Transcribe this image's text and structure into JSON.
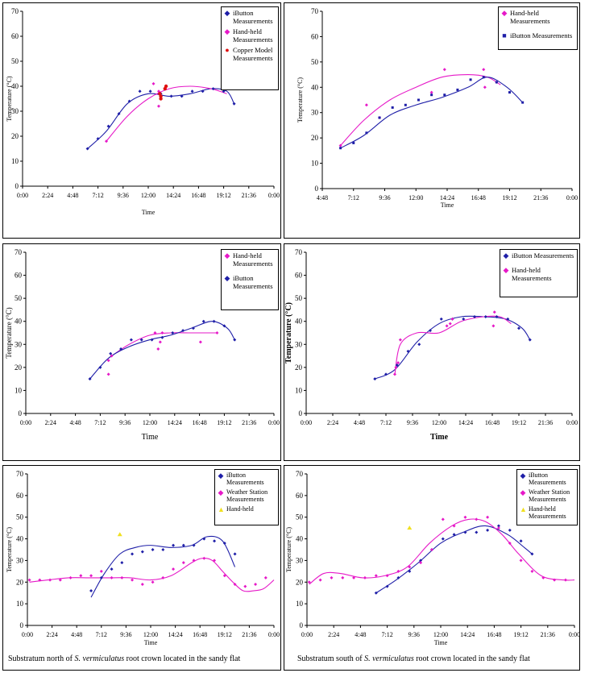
{
  "colors": {
    "blue": "#1f1fa8",
    "magenta": "#e619c8",
    "red": "#e01010",
    "yellow": "#f0e020"
  },
  "chart_data": [
    {
      "type": "scatter",
      "xlabel": "Time",
      "ylabel": "Temperature (°C)",
      "ylim": [
        0,
        70
      ],
      "y_ticks": [
        "0",
        "10",
        "20",
        "30",
        "40",
        "50",
        "60",
        "70"
      ],
      "x_ticks": [
        "0:00",
        "2:24",
        "4:48",
        "7:12",
        "9:36",
        "12:00",
        "14:24",
        "16:48",
        "19:12",
        "21:36",
        "0:00"
      ],
      "legend": [
        "iButton Measurements",
        "Hand-held Measurements",
        "Copper Model Measurements"
      ],
      "series": [
        {
          "name": "iButton Measurements",
          "color": "blue",
          "x": [
            6.2,
            7.2,
            8.2,
            9.2,
            10.2,
            11.2,
            12.2,
            13.2,
            14.2,
            15.2,
            16.2,
            17.2,
            18.2,
            19.2,
            20.2
          ],
          "y": [
            15,
            19,
            24,
            29,
            34,
            38,
            38,
            37,
            36,
            36,
            38,
            38,
            39,
            38,
            33
          ]
        },
        {
          "name": "Hand-held Measurements",
          "color": "magenta",
          "x": [
            8.0,
            12.5,
            13.0,
            13.0
          ],
          "y": [
            18,
            41,
            38,
            32
          ]
        },
        {
          "name": "Copper Model Measurements",
          "color": "red",
          "x": [
            13.1,
            13.2,
            13.6,
            13.7,
            13.2
          ],
          "y": [
            37,
            36,
            39,
            40,
            35
          ]
        }
      ],
      "trend_lines": [
        {
          "color": "blue",
          "x": [
            6.2,
            8,
            10,
            12,
            14,
            16,
            18,
            19.5,
            20.2
          ],
          "y": [
            15,
            22,
            33,
            37,
            36,
            37,
            39,
            38,
            33
          ]
        },
        {
          "color": "magenta",
          "x": [
            8.0,
            10,
            12,
            14,
            16,
            18,
            19.5
          ],
          "y": [
            18,
            28,
            35,
            39,
            40,
            39,
            37
          ]
        }
      ]
    },
    {
      "type": "scatter",
      "xlabel": "Time",
      "ylabel": "Temperature (°C)",
      "ylim": [
        0,
        70
      ],
      "y_ticks": [
        "0",
        "10",
        "20",
        "30",
        "40",
        "50",
        "60",
        "70"
      ],
      "x_ticks": [
        "4:48",
        "7:12",
        "9:36",
        "12:00",
        "14:24",
        "16:48",
        "19:12",
        "21:36",
        "0:00"
      ],
      "legend": [
        "Hand-held Measurements",
        "iButton Measurements"
      ],
      "series": [
        {
          "name": "Hand-held Measurements",
          "color": "magenta",
          "x": [
            6.2,
            8.2,
            9.2,
            13.2,
            14.2,
            17.2,
            17.3,
            18.2
          ],
          "y": [
            17,
            33,
            28,
            38,
            47,
            47,
            40,
            42
          ]
        },
        {
          "name": "iButton Measurements",
          "color": "blue",
          "x": [
            6.2,
            7.2,
            8.2,
            9.2,
            10.2,
            11.2,
            12.2,
            13.2,
            14.2,
            15.2,
            16.2,
            17.2,
            18.2,
            19.2,
            20.2
          ],
          "y": [
            16,
            18,
            22,
            28,
            32,
            33,
            35,
            37,
            37,
            39,
            43,
            44,
            42,
            38,
            34
          ]
        }
      ],
      "trend_lines": [
        {
          "color": "magenta",
          "x": [
            6.2,
            8,
            10,
            12,
            14,
            16,
            17.5,
            18.5
          ],
          "y": [
            17,
            27,
            35,
            40,
            44,
            45,
            44,
            41
          ]
        },
        {
          "color": "blue",
          "x": [
            6.2,
            8,
            10,
            12,
            14,
            16,
            17.5,
            19,
            20.2
          ],
          "y": [
            16,
            21,
            29,
            33,
            36,
            40,
            44,
            40,
            34
          ]
        }
      ]
    },
    {
      "type": "scatter",
      "xlabel": "Time",
      "ylabel": "Temperature (°C)",
      "ylim": [
        0,
        70
      ],
      "y_ticks": [
        "0",
        "10",
        "20",
        "30",
        "40",
        "50",
        "60",
        "70"
      ],
      "x_ticks": [
        "0:00",
        "2:24",
        "4:48",
        "7:12",
        "9:36",
        "12:00",
        "14:24",
        "16:48",
        "19:12",
        "21:36",
        "0:00"
      ],
      "legend": [
        "Hand-held Measurements",
        "iButton Measurements"
      ],
      "series": [
        {
          "name": "Hand-held Measurements",
          "color": "magenta",
          "x": [
            8.0,
            8.0,
            8.3,
            12.5,
            12.8,
            13.0,
            13.2,
            16.9,
            18.5
          ],
          "y": [
            17,
            23,
            25,
            35,
            28,
            31,
            35,
            31,
            35
          ]
        },
        {
          "name": "iButton Measurements",
          "color": "blue",
          "x": [
            6.2,
            7.2,
            8.2,
            9.2,
            10.2,
            11.2,
            12.2,
            13.2,
            14.2,
            15.2,
            16.2,
            17.2,
            18.2,
            19.2,
            20.2
          ],
          "y": [
            15,
            20,
            26,
            28,
            32,
            32,
            32,
            33,
            35,
            36,
            37,
            40,
            40,
            38,
            32
          ]
        }
      ],
      "trend_lines": [
        {
          "color": "magenta",
          "x": [
            8.0,
            10,
            12,
            14,
            16,
            18,
            18.5
          ],
          "y": [
            24,
            30,
            34,
            35,
            35,
            35,
            35
          ]
        },
        {
          "color": "blue",
          "x": [
            6.2,
            8,
            10,
            12,
            14,
            16,
            18,
            19.5,
            20.2
          ],
          "y": [
            15,
            24,
            29,
            32,
            34,
            37,
            40,
            37,
            32
          ]
        }
      ]
    },
    {
      "type": "scatter",
      "xlabel": "Time",
      "ylabel": "Temperature (°C)",
      "ylim": [
        0,
        70
      ],
      "y_ticks": [
        "0",
        "10",
        "20",
        "30",
        "40",
        "50",
        "60",
        "70"
      ],
      "x_ticks": [
        "0:00",
        "2:24",
        "4:48",
        "7:12",
        "9:36",
        "12:00",
        "14:24",
        "16:48",
        "19:12",
        "21:36",
        "0:00"
      ],
      "legend": [
        "iButton Measurements",
        "Hand-held Measurements"
      ],
      "series": [
        {
          "name": "iButton Measurements",
          "color": "blue",
          "x": [
            6.2,
            7.2,
            8.2,
            9.2,
            10.2,
            11.2,
            12.2,
            13.2,
            14.2,
            15.2,
            16.2,
            17.2,
            18.2,
            19.2,
            20.2
          ],
          "y": [
            15,
            17,
            21,
            27,
            30,
            36,
            41,
            41,
            41,
            42,
            42,
            42,
            41,
            37,
            32
          ]
        },
        {
          "name": "Hand-held Measurements",
          "color": "magenta",
          "x": [
            8.0,
            8.1,
            8.3,
            8.5,
            12.7,
            13.0,
            13.2,
            16.9,
            17.0
          ],
          "y": [
            17,
            20,
            22,
            32,
            38,
            39,
            41,
            38,
            44
          ]
        }
      ],
      "trend_lines": [
        {
          "color": "blue",
          "x": [
            6.2,
            8,
            10,
            12,
            14,
            16,
            18,
            19.5,
            20.2
          ],
          "y": [
            15,
            19,
            31,
            39,
            42,
            42,
            41,
            37,
            32
          ]
        },
        {
          "color": "magenta",
          "x": [
            8.0,
            8.5,
            10,
            12,
            14,
            16,
            17.5,
            18.5
          ],
          "y": [
            17,
            30,
            35,
            35,
            40,
            42,
            42,
            39
          ]
        }
      ]
    },
    {
      "type": "scatter",
      "xlabel": "Time",
      "ylabel": "Temperature (°C)",
      "ylim": [
        0,
        70
      ],
      "y_ticks": [
        "0",
        "10",
        "20",
        "30",
        "40",
        "50",
        "60",
        "70"
      ],
      "x_ticks": [
        "0:00",
        "2:24",
        "4:48",
        "7:12",
        "9:36",
        "12:00",
        "14:24",
        "16:48",
        "19:12",
        "21:36",
        "0:00"
      ],
      "legend": [
        "iButton Measurements",
        "Weather Station Measurements",
        "Hand-held"
      ],
      "caption": {
        "before": "Substratum north of ",
        "species": "S. vermiculatus",
        "after": " root crown located in the sandy flat"
      },
      "series": [
        {
          "name": "iButton Measurements",
          "color": "blue",
          "x": [
            6.2,
            7.2,
            8.2,
            9.2,
            10.2,
            11.2,
            12.2,
            13.2,
            14.2,
            15.2,
            16.2,
            17.2,
            18.2,
            19.2,
            20.2
          ],
          "y": [
            16,
            22,
            26,
            29,
            33,
            34,
            35,
            35,
            37,
            37,
            37,
            40,
            39,
            38,
            33
          ]
        },
        {
          "name": "Weather Station Measurements",
          "color": "magenta",
          "x": [
            0.2,
            1.2,
            2.2,
            3.2,
            4.2,
            5.2,
            6.2,
            7.2,
            8.2,
            9.2,
            10.2,
            11.2,
            12.2,
            13.2,
            14.2,
            15.2,
            16.2,
            17.2,
            18.2,
            19.2,
            20.2,
            21.2,
            22.2,
            23.2
          ],
          "y": [
            21,
            21,
            21,
            21,
            22,
            23,
            23,
            25,
            22,
            22,
            21,
            19,
            20,
            22,
            26,
            29,
            30,
            31,
            30,
            23,
            19,
            18,
            19,
            22
          ]
        },
        {
          "name": "Hand-held",
          "color": "yellow",
          "x": [
            9.0
          ],
          "y": [
            42
          ]
        }
      ],
      "trend_lines": [
        {
          "color": "blue",
          "x": [
            6.2,
            7.5,
            9,
            10.5,
            12,
            14,
            16,
            17.5,
            19,
            20.2
          ],
          "y": [
            13,
            24,
            33,
            36,
            37,
            36,
            37,
            41,
            39,
            27
          ]
        },
        {
          "color": "magenta",
          "x": [
            0.2,
            2,
            4,
            6,
            8,
            10,
            12,
            14,
            16,
            17,
            18,
            19,
            20,
            21,
            22,
            23,
            24
          ],
          "y": [
            20,
            21,
            22,
            22,
            22,
            22,
            21,
            23,
            29,
            31,
            30,
            25,
            20,
            16,
            16,
            17,
            21
          ]
        }
      ]
    },
    {
      "type": "scatter",
      "xlabel": "Time",
      "ylabel": "Temperature (°C)",
      "ylim": [
        0,
        70
      ],
      "y_ticks": [
        "0",
        "10",
        "20",
        "30",
        "40",
        "50",
        "60",
        "70"
      ],
      "x_ticks": [
        "0:00",
        "2:24",
        "4:48",
        "7:12",
        "9:36",
        "12:00",
        "14:24",
        "16:48",
        "19:12",
        "21:36",
        "0:00"
      ],
      "legend": [
        "iButton Measurements",
        "Weather Station Measurements",
        "Hand-held Measurements"
      ],
      "caption": {
        "before": "Substratum south of ",
        "species": "S. vermiculatus",
        "after": " root crown located in the sandy flat"
      },
      "series": [
        {
          "name": "iButton Measurements",
          "color": "blue",
          "x": [
            6.2,
            7.2,
            8.2,
            9.2,
            10.2,
            11.2,
            12.2,
            13.2,
            14.2,
            15.2,
            16.2,
            17.2,
            18.2,
            19.2,
            20.2
          ],
          "y": [
            15,
            18,
            22,
            25,
            30,
            35,
            40,
            42,
            43,
            43,
            44,
            46,
            44,
            39,
            33
          ]
        },
        {
          "name": "Weather Station Measurements",
          "color": "magenta",
          "x": [
            0.2,
            1.2,
            2.2,
            3.2,
            4.2,
            5.2,
            6.2,
            7.2,
            8.2,
            9.2,
            10.2,
            11.2,
            12.2,
            13.2,
            14.2,
            15.2,
            16.2,
            17.2,
            18.2,
            19.2,
            20.2,
            21.2,
            22.2,
            23.2
          ],
          "y": [
            20,
            21,
            22,
            22,
            22,
            22,
            23,
            23,
            25,
            27,
            29,
            35,
            49,
            46,
            50,
            49,
            50,
            45,
            38,
            30,
            25,
            22,
            21,
            21
          ]
        },
        {
          "name": "Hand-held Measurements",
          "color": "yellow",
          "x": [
            9.2
          ],
          "y": [
            45
          ]
        }
      ],
      "trend_lines": [
        {
          "color": "blue",
          "x": [
            6.2,
            8,
            10,
            12,
            14,
            16,
            18,
            19.5,
            20.2
          ],
          "y": [
            15,
            21,
            29,
            38,
            43,
            46,
            42,
            36,
            33
          ]
        },
        {
          "color": "magenta",
          "x": [
            0.2,
            1.5,
            3,
            5,
            7,
            9,
            11,
            13,
            14.5,
            16,
            17.5,
            19,
            21,
            23,
            24
          ],
          "y": [
            19,
            24,
            24,
            22,
            23,
            27,
            38,
            46,
            49,
            48,
            42,
            33,
            23,
            21,
            21
          ]
        }
      ]
    }
  ]
}
